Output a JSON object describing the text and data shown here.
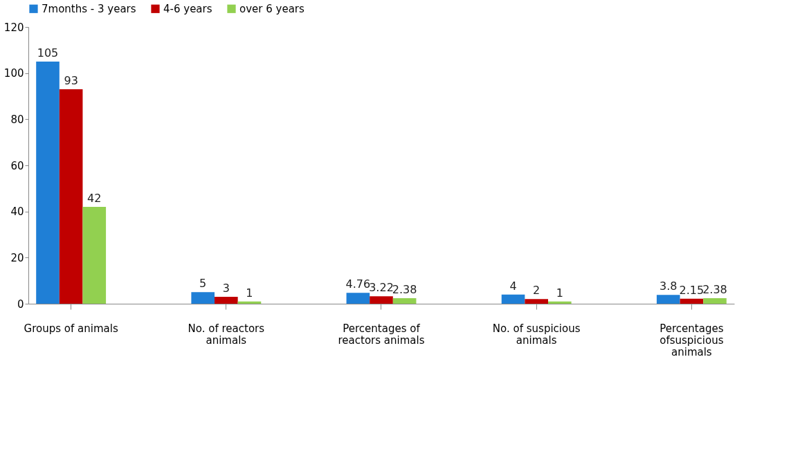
{
  "chart_data": {
    "type": "bar",
    "categories": [
      "Groups of animals",
      "No. of reactors animals",
      "Percentages of reactors animals",
      "No. of suspicious animals",
      "Percentages ofsuspicious animals"
    ],
    "series": [
      {
        "name": "7months - 3 years",
        "color": "#1f7fd6",
        "values": [
          105,
          5,
          4.76,
          4,
          3.8
        ]
      },
      {
        "name": "4-6 years",
        "color": "#c00000",
        "values": [
          93,
          3,
          3.22,
          2,
          2.15
        ]
      },
      {
        "name": "over 6 years",
        "color": "#92d050",
        "values": [
          42,
          1,
          2.38,
          1,
          2.38
        ]
      }
    ],
    "ylim": [
      0,
      120
    ],
    "yticks": [
      0,
      20,
      40,
      60,
      80,
      100,
      120
    ],
    "data_labels": true,
    "legend": "top",
    "grid": false
  }
}
